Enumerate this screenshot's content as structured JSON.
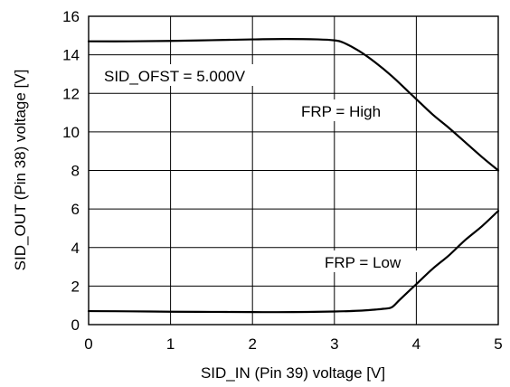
{
  "chart_data": {
    "type": "line",
    "xlabel": "SID_IN (Pin 39) voltage [V]",
    "ylabel": "SID_OUT (Pin 38) voltage [V]",
    "xlim": [
      0,
      5
    ],
    "ylim": [
      0,
      16
    ],
    "x_ticks": [
      "0",
      "1",
      "2",
      "3",
      "4",
      "5"
    ],
    "y_ticks": [
      "0",
      "2",
      "4",
      "6",
      "8",
      "10",
      "12",
      "14",
      "16"
    ],
    "grid": true,
    "annotations": {
      "condition": "SID_OFST = 5.000V",
      "high_label": "FRP = High",
      "low_label": "FRP = Low"
    },
    "series": [
      {
        "x": [
          0,
          0.5,
          1.0,
          1.5,
          2.0,
          2.4,
          2.8,
          3.0,
          3.1,
          3.3,
          3.5,
          3.7,
          3.9,
          4.0,
          4.2,
          4.4,
          4.6,
          4.8,
          5.0
        ],
        "y": [
          14.7,
          14.7,
          14.72,
          14.76,
          14.8,
          14.82,
          14.8,
          14.75,
          14.65,
          14.2,
          13.6,
          12.9,
          12.1,
          11.7,
          10.9,
          10.2,
          9.45,
          8.7,
          8.0
        ]
      },
      {
        "x": [
          0,
          0.5,
          1.0,
          1.5,
          2.0,
          2.5,
          3.0,
          3.3,
          3.5,
          3.6,
          3.7,
          3.8,
          4.0,
          4.2,
          4.4,
          4.6,
          4.8,
          5.0
        ],
        "y": [
          0.7,
          0.69,
          0.67,
          0.66,
          0.65,
          0.65,
          0.68,
          0.72,
          0.78,
          0.82,
          0.9,
          1.3,
          2.1,
          2.9,
          3.6,
          4.4,
          5.1,
          5.9
        ]
      }
    ]
  }
}
